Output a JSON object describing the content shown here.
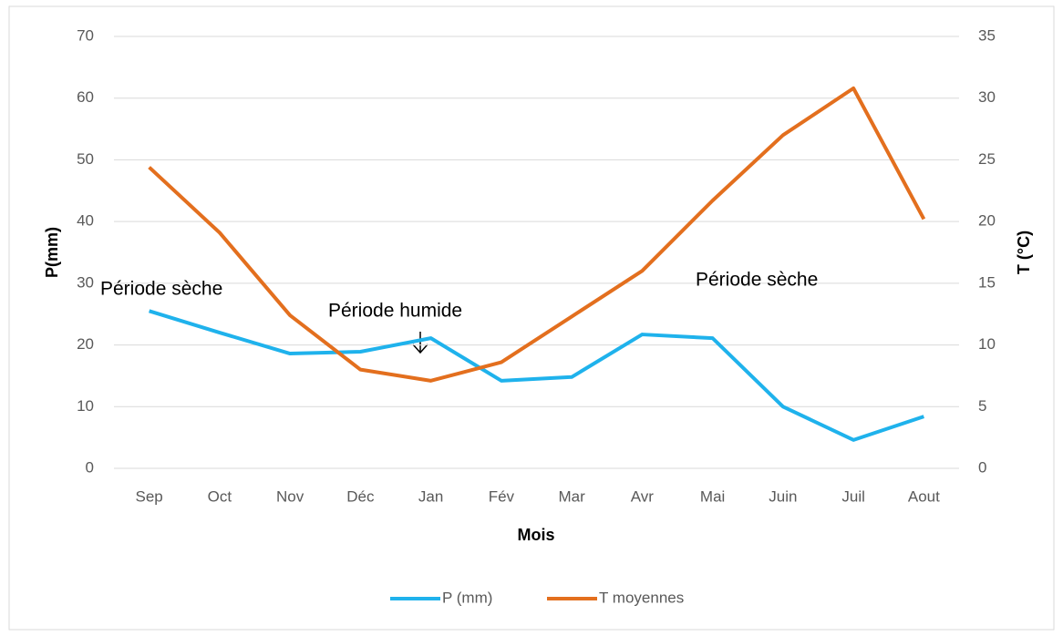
{
  "chart_data": {
    "type": "line",
    "x_label": "Mois",
    "y_label": "P(mm)",
    "y2_label": "T (°C)",
    "categories": [
      "Sep",
      "Oct",
      "Nov",
      "Déc",
      "Jan",
      "Fév",
      "Mar",
      "Avr",
      "Mai",
      "Juin",
      "Juil",
      "Aout"
    ],
    "series": [
      {
        "name": "P (mm)",
        "color": "#1fb2ec",
        "values": [
          25.5,
          22,
          18.6,
          18.9,
          21.1,
          14.2,
          14.8,
          21.7,
          21.1,
          10,
          4.6,
          8.4
        ]
      },
      {
        "name": "T moyennes",
        "color": "#e36f1e",
        "axis": "y2",
        "values": [
          24.4,
          19.1,
          12.4,
          8.0,
          7.1,
          8.6,
          12.3,
          16.0,
          21.7,
          27.0,
          30.8,
          20.2
        ]
      }
    ],
    "ylim": [
      0,
      70
    ],
    "yticks": [
      0,
      10,
      20,
      30,
      40,
      50,
      60,
      70
    ],
    "y2lim": [
      0,
      35
    ],
    "y2ticks": [
      0,
      5,
      10,
      15,
      20,
      25,
      30,
      35
    ],
    "grid": true,
    "legend": "bottom",
    "annotations": [
      "Période sèche",
      "Période humide",
      "Période sèche"
    ]
  }
}
